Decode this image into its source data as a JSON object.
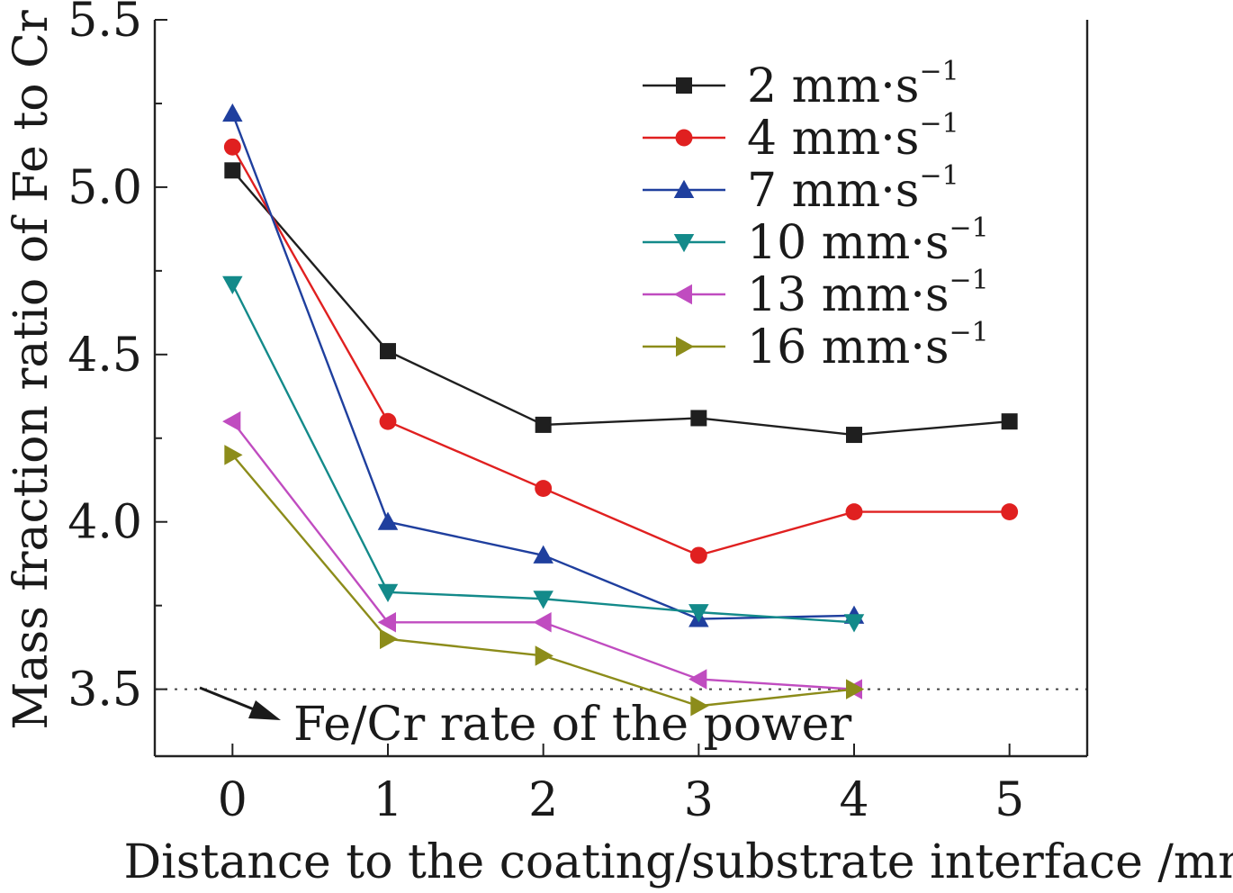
{
  "chart_data": {
    "type": "line",
    "title": "",
    "xlabel": "Distance to the coating/substrate interface /mm",
    "ylabel": "Mass fraction ratio of Fe to Cr",
    "xlim": [
      -0.5,
      5.5
    ],
    "ylim": [
      3.3,
      5.5
    ],
    "xticks": [
      "0",
      "1",
      "2",
      "3",
      "4",
      "5"
    ],
    "yticks": [
      "3.5",
      "4.0",
      "4.5",
      "5.0",
      "5.5"
    ],
    "legend_position": "top-right",
    "series": [
      {
        "name": "2 mm·s",
        "unit_sup": "−1",
        "color": "#1f1f1f",
        "marker": "square",
        "x": [
          0,
          1,
          2,
          3,
          4,
          5
        ],
        "y": [
          5.05,
          4.51,
          4.29,
          4.31,
          4.26,
          4.3
        ]
      },
      {
        "name": "4 mm·s",
        "unit_sup": "−1",
        "color": "#e02020",
        "marker": "circle",
        "x": [
          0,
          1,
          2,
          3,
          4,
          5
        ],
        "y": [
          5.12,
          4.3,
          4.1,
          3.9,
          4.03,
          4.03
        ]
      },
      {
        "name": "7 mm·s",
        "unit_sup": "−1",
        "color": "#1f3f9e",
        "marker": "triangle-up",
        "x": [
          0,
          1,
          2,
          3,
          4
        ],
        "y": [
          5.22,
          4.0,
          3.9,
          3.71,
          3.72
        ]
      },
      {
        "name": "10 mm·s",
        "unit_sup": "−1",
        "color": "#138a8a",
        "marker": "triangle-down",
        "x": [
          0,
          1,
          2,
          3,
          4
        ],
        "y": [
          4.71,
          3.79,
          3.77,
          3.73,
          3.7
        ]
      },
      {
        "name": "13 mm·s",
        "unit_sup": "−1",
        "color": "#c04cc0",
        "marker": "triangle-left",
        "x": [
          0,
          1,
          2,
          3,
          4
        ],
        "y": [
          4.3,
          3.7,
          3.7,
          3.53,
          3.5
        ]
      },
      {
        "name": "16 mm·s",
        "unit_sup": "−1",
        "color": "#8c8c1a",
        "marker": "triangle-right",
        "x": [
          0,
          1,
          2,
          3,
          4
        ],
        "y": [
          4.2,
          3.65,
          3.6,
          3.45,
          3.5
        ]
      }
    ],
    "reference_line": {
      "y": 3.5,
      "style": "dotted",
      "color": "#444444"
    },
    "annotations": [
      {
        "text": "Fe/Cr rate of the power"
      }
    ]
  }
}
